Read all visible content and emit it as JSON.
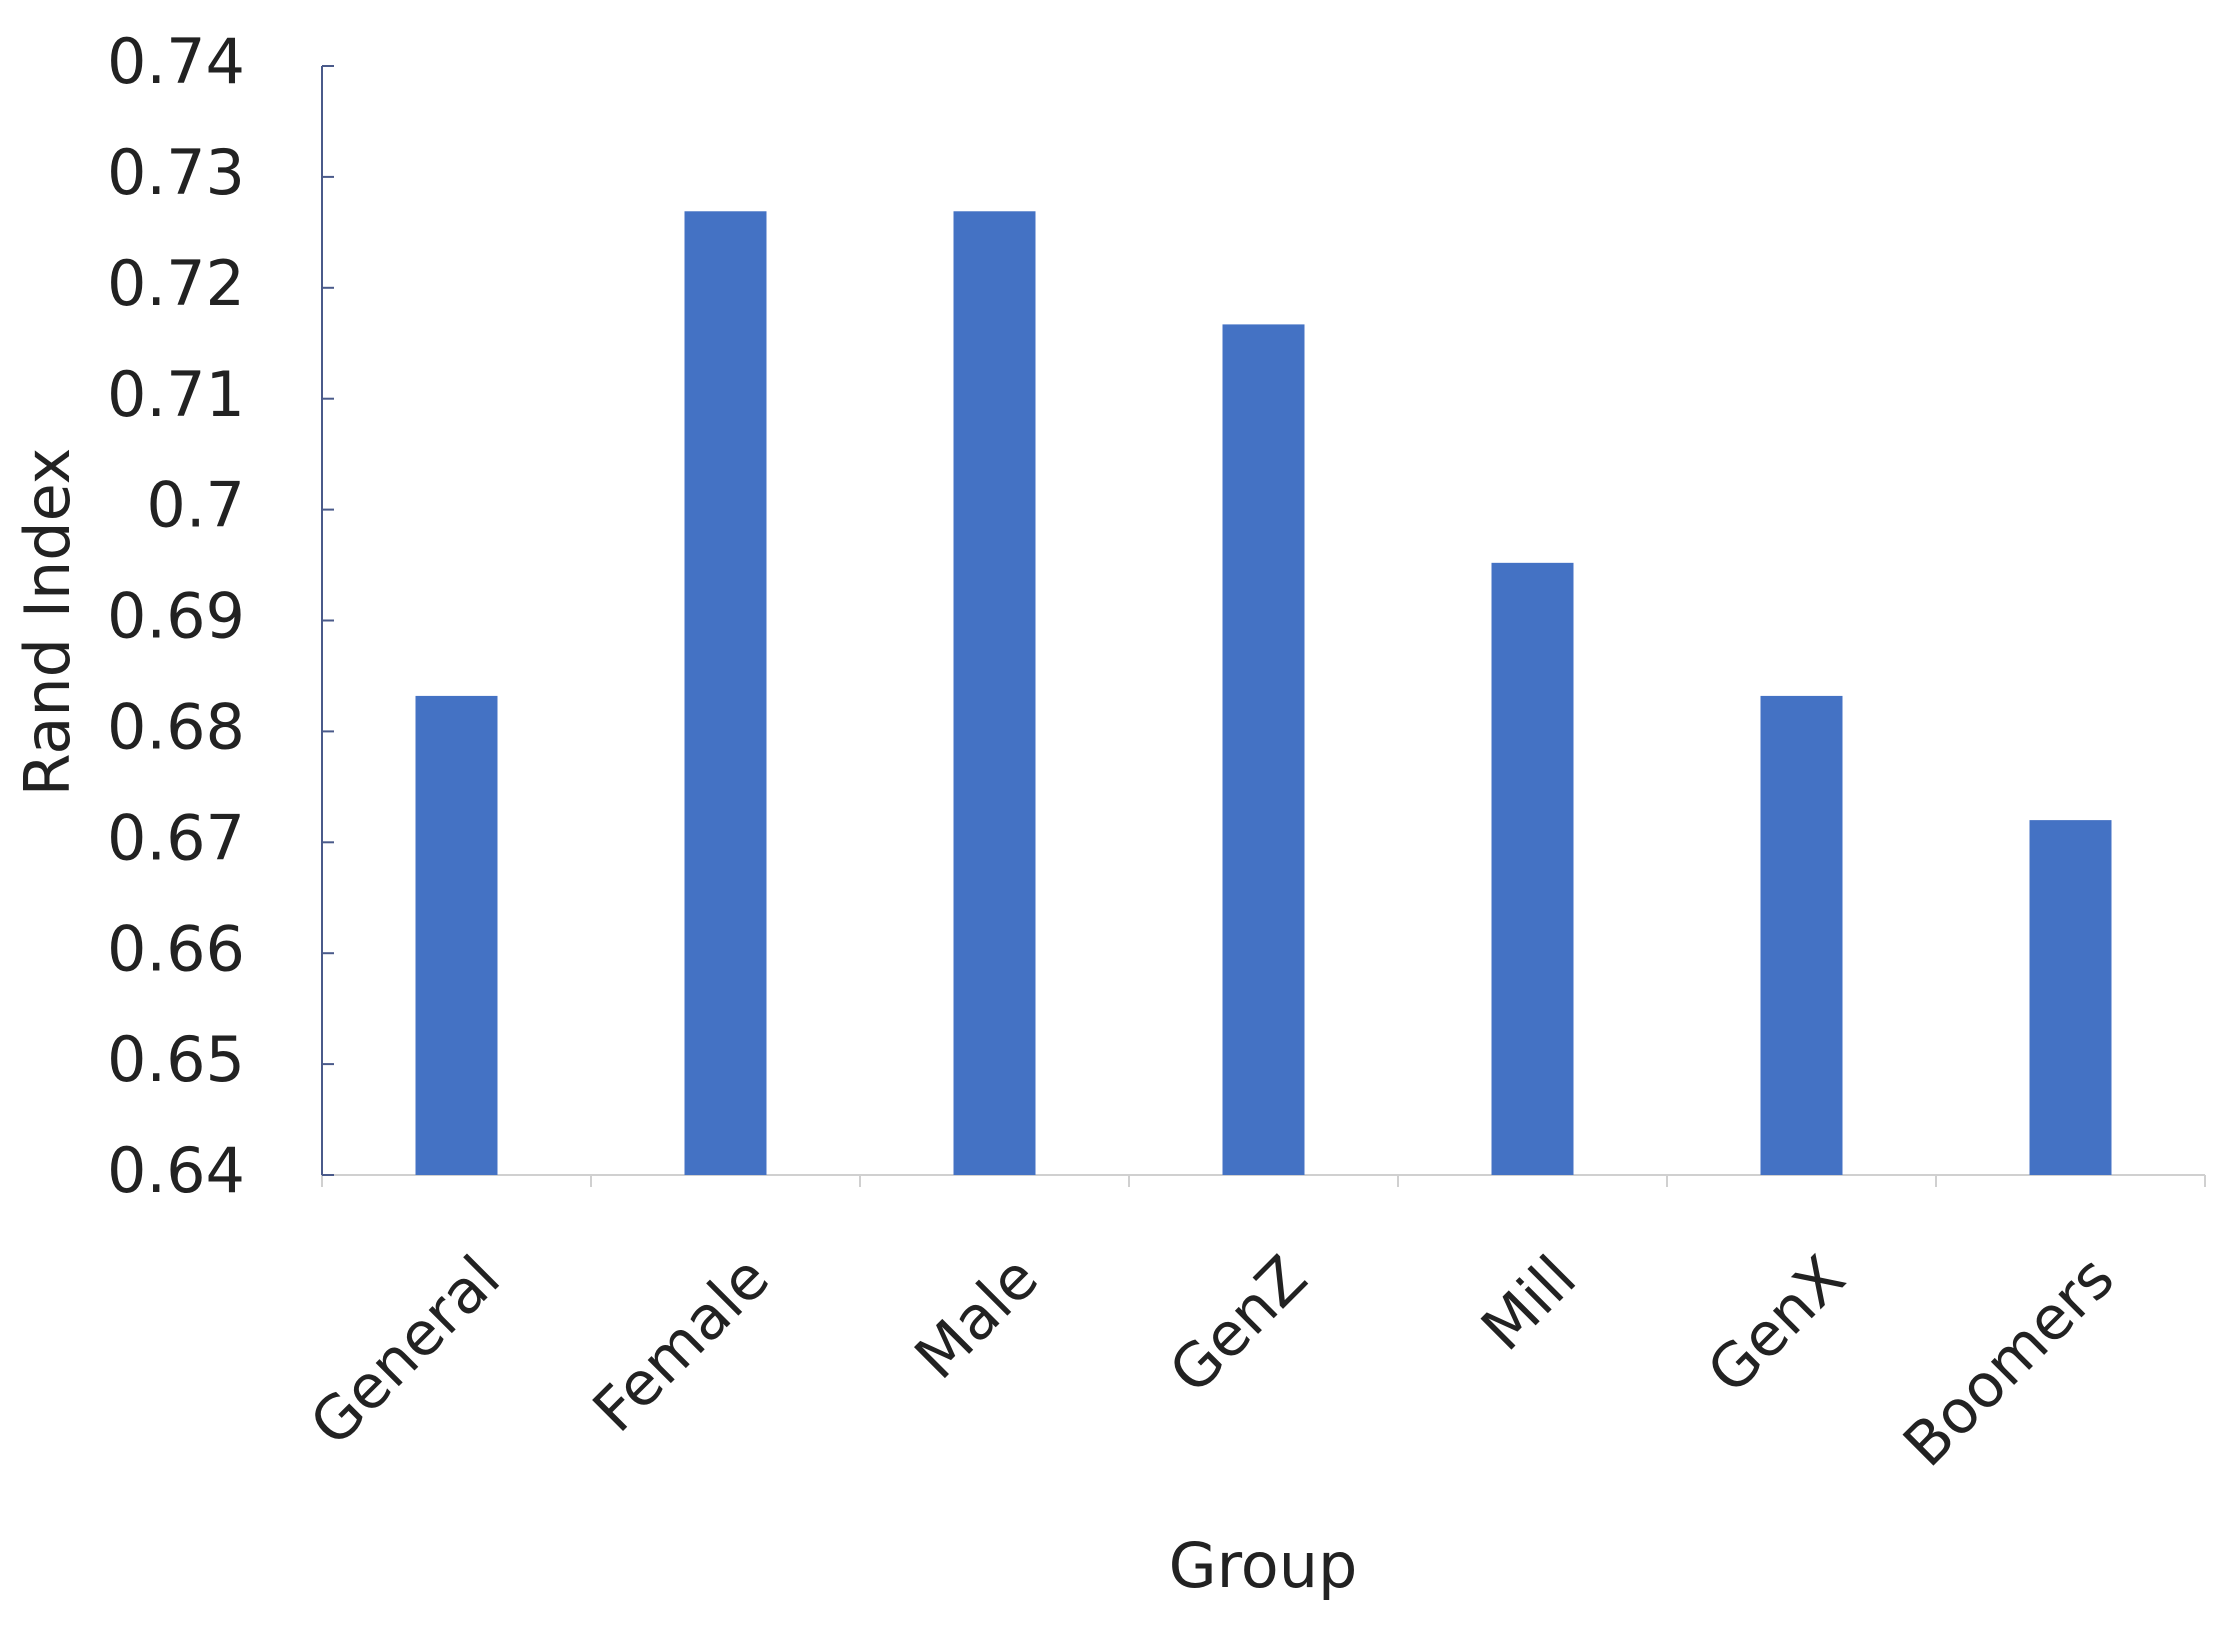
{
  "chart_data": {
    "type": "bar",
    "x_label": "Group",
    "y_label": "Rand Index",
    "categories": [
      "General",
      "Female",
      "Male",
      "GenZ",
      "Mill",
      "GenX",
      "Boomers"
    ],
    "values": [
      0.6832,
      0.7269,
      0.7269,
      0.7167,
      0.6952,
      0.6832,
      0.672
    ],
    "color": "#4472c4",
    "ylim": [
      0.64,
      0.74
    ],
    "yticks": [
      0.64,
      0.65,
      0.66,
      0.67,
      0.68,
      0.69,
      0.7,
      0.71,
      0.72,
      0.73,
      0.74
    ],
    "grid": false
  }
}
